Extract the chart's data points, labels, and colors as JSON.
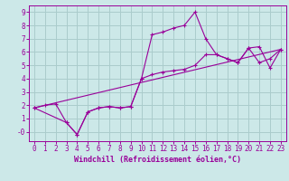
{
  "xlabel": "Windchill (Refroidissement éolien,°C)",
  "background_color": "#cce8e8",
  "grid_color": "#aacccc",
  "line_color": "#990099",
  "xlim": [
    -0.5,
    23.5
  ],
  "ylim": [
    -0.7,
    9.5
  ],
  "xticks": [
    0,
    1,
    2,
    3,
    4,
    5,
    6,
    7,
    8,
    9,
    10,
    11,
    12,
    13,
    14,
    15,
    16,
    17,
    18,
    19,
    20,
    21,
    22,
    23
  ],
  "yticks": [
    0,
    1,
    2,
    3,
    4,
    5,
    6,
    7,
    8,
    9
  ],
  "ytick_labels": [
    "-0",
    "1",
    "2",
    "3",
    "4",
    "5",
    "6",
    "7",
    "8",
    "9"
  ],
  "series1_x": [
    0,
    1,
    2,
    3,
    4,
    5,
    6,
    7,
    8,
    9,
    10,
    11,
    12,
    13,
    14,
    15,
    16,
    17,
    18,
    19,
    20,
    21,
    22,
    23
  ],
  "series1_y": [
    1.8,
    2.0,
    2.1,
    0.7,
    -0.2,
    1.5,
    1.8,
    1.9,
    1.8,
    1.9,
    4.0,
    7.3,
    7.5,
    7.8,
    8.0,
    9.0,
    7.0,
    5.8,
    5.5,
    5.2,
    6.3,
    6.4,
    4.8,
    6.2
  ],
  "series2_x": [
    0,
    23
  ],
  "series2_y": [
    1.8,
    6.2
  ],
  "series3_x": [
    0,
    3,
    4,
    5,
    6,
    7,
    8,
    9,
    10,
    11,
    12,
    13,
    14,
    15,
    16,
    17,
    18,
    19,
    20,
    21,
    22,
    23
  ],
  "series3_y": [
    1.8,
    0.7,
    -0.2,
    1.5,
    1.8,
    1.9,
    1.8,
    1.9,
    4.0,
    4.3,
    4.5,
    4.6,
    4.7,
    5.0,
    5.8,
    5.8,
    5.5,
    5.2,
    6.3,
    5.2,
    5.5,
    6.2
  ],
  "tick_fontsize": 5.5,
  "label_fontsize": 6.0
}
